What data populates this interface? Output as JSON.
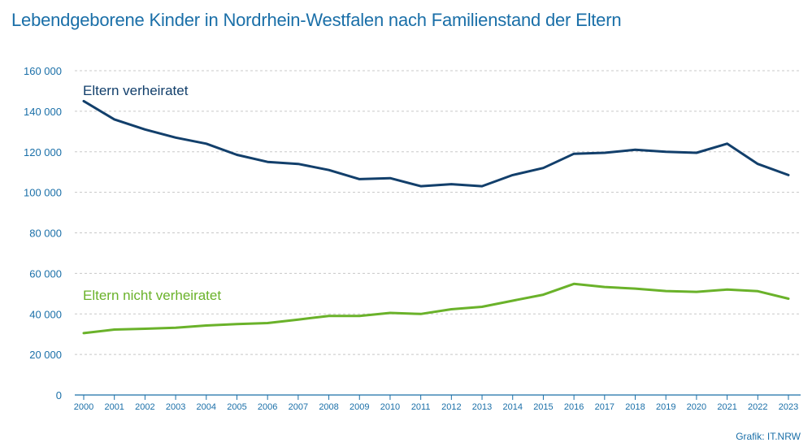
{
  "title": "Lebendgeborene Kinder in Nordrhein-Westfalen nach Familienstand der Eltern",
  "credit": "Grafik: IT.NRW",
  "colors": {
    "title": "#1a6fa8",
    "married": "#123f6b",
    "unmarried": "#6ab22a",
    "grid": "#c8c8c8",
    "axis": "#1a6fa8"
  },
  "chart_data": {
    "type": "line",
    "title": "Lebendgeborene Kinder in Nordrhein-Westfalen nach Familienstand der Eltern",
    "x": [
      "2000",
      "2001",
      "2002",
      "2003",
      "2004",
      "2005",
      "2006",
      "2007",
      "2008",
      "2009",
      "2010",
      "2011",
      "2012",
      "2013",
      "2014",
      "2015",
      "2016",
      "2017",
      "2018",
      "2019",
      "2020",
      "2021",
      "2022",
      "2023"
    ],
    "ylim": [
      0,
      160000
    ],
    "yticks": [
      0,
      20000,
      40000,
      60000,
      80000,
      100000,
      120000,
      140000,
      160000
    ],
    "ytick_labels": [
      "0",
      "20 000",
      "40 000",
      "60 000",
      "80 000",
      "100 000",
      "120 000",
      "140 000",
      "160 000"
    ],
    "grid": true,
    "legend": "inline labels",
    "series": [
      {
        "name": "Eltern verheiratet",
        "color": "#123f6b",
        "values": [
          145000,
          136000,
          131000,
          127000,
          124000,
          118500,
          115000,
          114000,
          111000,
          106500,
          107000,
          103000,
          104000,
          103000,
          108500,
          112000,
          119000,
          119500,
          121000,
          120000,
          119500,
          124000,
          114000,
          108500
        ]
      },
      {
        "name": "Eltern nicht verheiratet",
        "color": "#6ab22a",
        "values": [
          30500,
          32300,
          32700,
          33200,
          34300,
          35000,
          35500,
          37200,
          39000,
          39000,
          40500,
          40000,
          42300,
          43500,
          46500,
          49500,
          54800,
          53300,
          52500,
          51300,
          50900,
          52000,
          51200,
          47500
        ]
      }
    ]
  }
}
